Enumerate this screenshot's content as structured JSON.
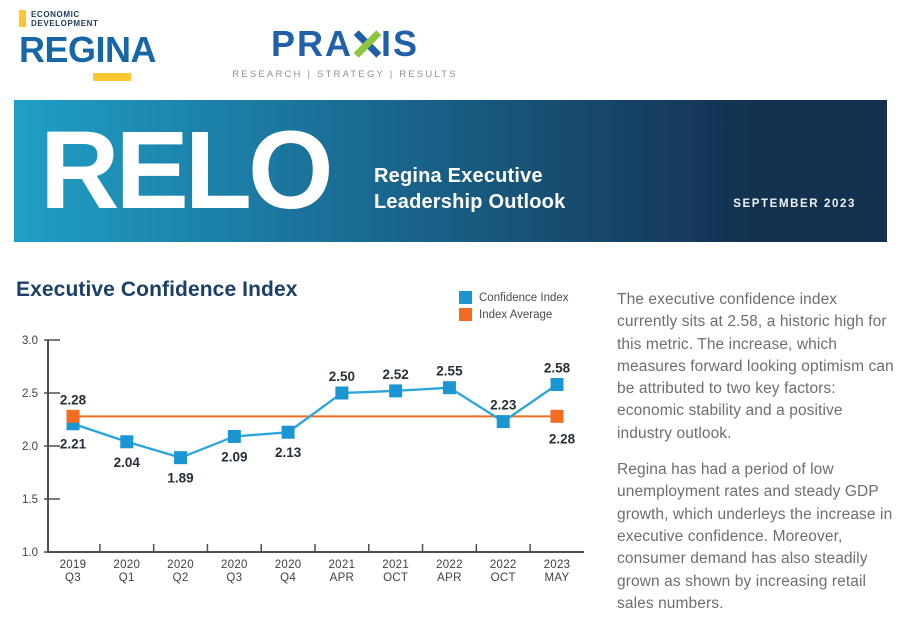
{
  "header": {
    "regina": {
      "tagline_line1": "ECONOMIC",
      "tagline_line2": "DEVELOPMENT",
      "wordmark": "REGINA",
      "navy": "#1b3a5f",
      "blue": "#1766a5",
      "yellow": "#fdc72f"
    },
    "praxis": {
      "wordmark_left": "PRA",
      "wordmark_right": "IS",
      "tagline": "RESEARCH | STRATEGY | RESULTS",
      "blue": "#2060a8",
      "green": "#8cc63f"
    }
  },
  "banner": {
    "acronym": "RELO",
    "title_line1": "Regina Executive",
    "title_line2": "Leadership Outlook",
    "date": "SEPTEMBER 2023",
    "gradient_start": "#1f9fc7",
    "gradient_mid": "#1a6a92",
    "gradient_end": "#14304f"
  },
  "section_title": "Executive Confidence Index",
  "legend": [
    {
      "label": "Confidence Index",
      "color": "#1b96d2"
    },
    {
      "label": "Index Average",
      "color": "#f26c21"
    }
  ],
  "chart_data": {
    "type": "line",
    "title": "Executive Confidence Index",
    "categories_line1": [
      "2019",
      "2020",
      "2020",
      "2020",
      "2020",
      "2021",
      "2021",
      "2022",
      "2022",
      "2023"
    ],
    "categories_line2": [
      "Q3",
      "Q1",
      "Q2",
      "Q3",
      "Q4",
      "APR",
      "OCT",
      "APR",
      "OCT",
      "MAY"
    ],
    "series": [
      {
        "name": "Confidence Index",
        "values": [
          2.21,
          2.04,
          1.89,
          2.09,
          2.13,
          2.5,
          2.52,
          2.55,
          2.23,
          2.58
        ],
        "labels": [
          "2.21",
          "2.04",
          "1.89",
          "2.09",
          "2.13",
          "2.50",
          "2.52",
          "2.55",
          "2.23",
          "2.58"
        ],
        "label_side": [
          "below",
          "below",
          "below",
          "below",
          "below",
          "above",
          "above",
          "above",
          "above",
          "above"
        ],
        "marker_color": "#1b96d2",
        "line_color": "#29a5dc"
      },
      {
        "name": "Index Average",
        "average_value": 2.28,
        "start_label": "2.28",
        "end_label": "2.28",
        "start_label_side": "above",
        "end_label_side": "below",
        "color": "#f26c21"
      }
    ],
    "ylim": [
      1.0,
      3.0
    ],
    "yticks": [
      3.0,
      2.5,
      2.0,
      1.5,
      1.0
    ],
    "grid": false,
    "legend_position": "top-right",
    "axis_color": "#4d4d4f",
    "value_label_color": "#25303a",
    "tick_label_color": "#414042"
  },
  "article": {
    "paragraphs": [
      "The executive confidence index currently sits at 2.58, a historic high for this metric. The increase, which measures forward looking optimism can be attributed to two key factors: economic stability and a positive industry outlook.",
      "Regina has had a period of low unemployment rates and steady GDP growth, which underleys the increase in executive confidence. Moreover, consumer demand has also steadily grown as shown by increasing retail sales numbers."
    ]
  }
}
